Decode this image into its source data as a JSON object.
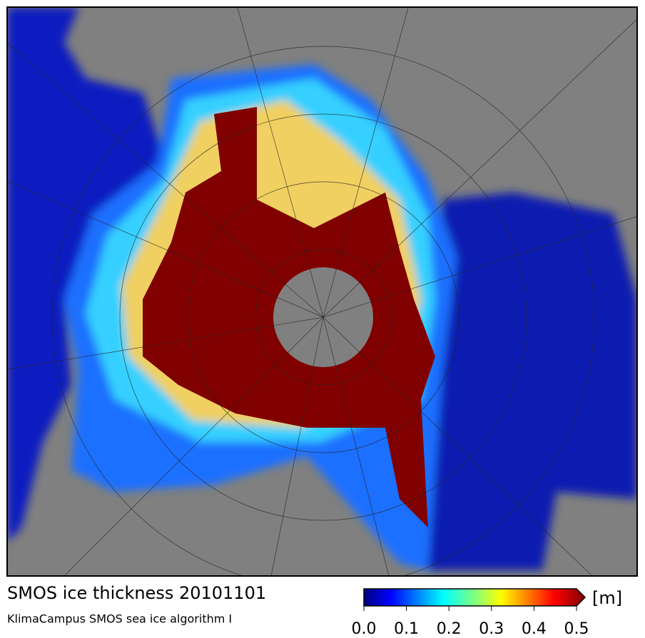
{
  "map": {
    "title": "SMOS ice thickness 20101101",
    "subtitle": "KlimaCampus SMOS sea ice algorithm I"
  },
  "colorbar": {
    "unit": "[m]",
    "range": [
      0,
      0.5
    ],
    "ticks": [
      {
        "value": 0,
        "label": "0.0"
      },
      0.1,
      0.2,
      0.3,
      0.4,
      0.5
    ]
  }
}
